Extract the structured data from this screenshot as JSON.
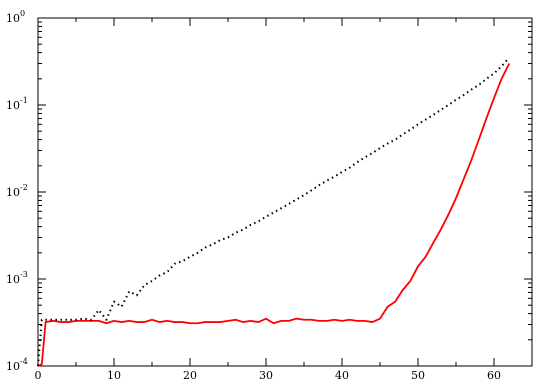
{
  "chart_data": {
    "type": "line",
    "title": "",
    "xlabel": "",
    "ylabel": "",
    "xlim": [
      0,
      65
    ],
    "ylim": [
      0.0001,
      1
    ],
    "yscale": "log",
    "grid": false,
    "x_ticks": [
      0,
      10,
      20,
      30,
      40,
      50,
      60
    ],
    "x_tick_labels": [
      "0",
      "10",
      "20",
      "30",
      "40",
      "50",
      "60"
    ],
    "y_ticks": [
      0.0001,
      0.001,
      0.01,
      0.1,
      1
    ],
    "y_tick_labels": [
      {
        "base": "10",
        "exp": "-4"
      },
      {
        "base": "10",
        "exp": "-3"
      },
      {
        "base": "10",
        "exp": "-2"
      },
      {
        "base": "10",
        "exp": "-1"
      },
      {
        "base": "10",
        "exp": "0"
      }
    ],
    "series": [
      {
        "color": "#ff0000",
        "style": "solid",
        "x": [
          0,
          0.5,
          1,
          2,
          3,
          4,
          5,
          6,
          7,
          8,
          9,
          10,
          11,
          12,
          13,
          14,
          15,
          16,
          17,
          18,
          19,
          20,
          21,
          22,
          23,
          24,
          25,
          26,
          27,
          28,
          29,
          30,
          31,
          32,
          33,
          34,
          35,
          36,
          37,
          38,
          39,
          40,
          41,
          42,
          43,
          44,
          45,
          46,
          47,
          48,
          49,
          50,
          51,
          52,
          53,
          54,
          55,
          56,
          57,
          58,
          59,
          60,
          61,
          62
        ],
        "y": [
          0.0001,
          0.000105,
          0.00032,
          0.00033,
          0.00032,
          0.00032,
          0.00033,
          0.00033,
          0.00033,
          0.00033,
          0.00031,
          0.00033,
          0.00032,
          0.00033,
          0.00032,
          0.00032,
          0.00034,
          0.00032,
          0.00033,
          0.00032,
          0.00032,
          0.00031,
          0.00031,
          0.00032,
          0.00032,
          0.00032,
          0.00033,
          0.00034,
          0.00032,
          0.00033,
          0.00032,
          0.00035,
          0.00031,
          0.00033,
          0.00033,
          0.00035,
          0.00034,
          0.00034,
          0.00033,
          0.00033,
          0.00034,
          0.00033,
          0.00034,
          0.00033,
          0.00033,
          0.00032,
          0.00035,
          0.00048,
          0.00055,
          0.00075,
          0.00095,
          0.0014,
          0.0018,
          0.0026,
          0.0037,
          0.0055,
          0.0085,
          0.014,
          0.023,
          0.04,
          0.07,
          0.12,
          0.2,
          0.3
        ]
      },
      {
        "color": "#000000",
        "style": "dotted",
        "x": [
          0,
          0.5,
          1,
          2,
          3,
          4,
          5,
          6,
          7,
          8,
          9,
          10,
          11,
          12,
          13,
          14,
          15,
          16,
          17,
          18,
          19,
          20,
          21,
          22,
          23,
          24,
          25,
          26,
          27,
          28,
          29,
          30,
          31,
          32,
          33,
          34,
          35,
          36,
          37,
          38,
          39,
          40,
          41,
          42,
          43,
          44,
          45,
          46,
          47,
          48,
          49,
          50,
          51,
          52,
          53,
          54,
          55,
          56,
          57,
          58,
          59,
          60,
          61,
          62
        ],
        "y": [
          0.0001,
          0.00034,
          0.00034,
          0.00034,
          0.00034,
          0.00034,
          0.00034,
          0.00035,
          0.00034,
          0.00044,
          0.00034,
          0.00055,
          0.00048,
          0.00072,
          0.00065,
          0.00085,
          0.00095,
          0.0011,
          0.0012,
          0.0015,
          0.0016,
          0.0018,
          0.002,
          0.0023,
          0.0025,
          0.0028,
          0.003,
          0.0034,
          0.0037,
          0.0042,
          0.0046,
          0.0052,
          0.0058,
          0.0065,
          0.0073,
          0.0082,
          0.0092,
          0.0105,
          0.012,
          0.0135,
          0.015,
          0.017,
          0.019,
          0.022,
          0.025,
          0.028,
          0.032,
          0.036,
          0.04,
          0.046,
          0.052,
          0.06,
          0.068,
          0.077,
          0.088,
          0.1,
          0.115,
          0.13,
          0.15,
          0.17,
          0.2,
          0.23,
          0.28,
          0.35
        ]
      }
    ]
  }
}
